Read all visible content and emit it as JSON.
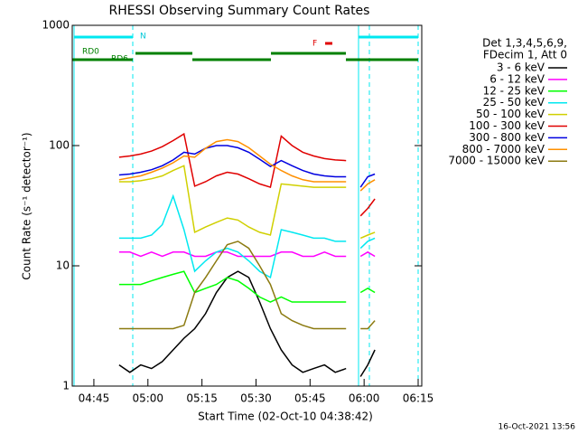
{
  "chart_data": {
    "type": "line",
    "title": "RHESSI Observing Summary Count Rates",
    "x_label": "Start Time (02-Oct-10 04:38:42)",
    "y_label": "Count Rate (s⁻¹ detector⁻¹)",
    "timestamp": "16-Oct-2021 13:56",
    "legend_title": [
      "Det 1,3,4,5,6,9,",
      "FDecim 1, Att 0"
    ],
    "annotations": [
      "N",
      "F",
      "RD0",
      "RD6"
    ],
    "log_y": true,
    "xlim": [
      39,
      136
    ],
    "xticks": [
      {
        "value": 45,
        "label": "04:45"
      },
      {
        "value": 60,
        "label": "05:00"
      },
      {
        "value": 75,
        "label": "05:15"
      },
      {
        "value": 90,
        "label": "05:30"
      },
      {
        "value": 105,
        "label": "05:45"
      },
      {
        "value": 120,
        "label": "06:00"
      },
      {
        "value": 135,
        "label": "06:15"
      }
    ],
    "ylim": [
      1,
      1000
    ],
    "yticks": [
      1,
      10,
      100,
      1000
    ],
    "x": [
      52,
      55,
      58,
      61,
      64,
      67,
      70,
      73,
      76,
      79,
      82,
      85,
      88,
      91,
      94,
      97,
      100,
      103,
      106,
      109,
      112,
      115,
      117,
      119,
      121,
      123
    ],
    "series": [
      {
        "name": "3 - 6 keV",
        "color": "#000000",
        "values": [
          1.5,
          1.3,
          1.5,
          1.4,
          1.6,
          2,
          2.5,
          3,
          4,
          6,
          8,
          9,
          8,
          5,
          3,
          2,
          1.5,
          1.3,
          1.4,
          1.5,
          1.3,
          1.4,
          null,
          1.2,
          1.5,
          2
        ]
      },
      {
        "name": "6 - 12 keV",
        "color": "#ff00ff",
        "values": [
          13,
          13,
          12,
          13,
          12,
          13,
          13,
          12,
          12,
          13,
          13,
          12,
          12,
          12,
          12,
          13,
          13,
          12,
          12,
          13,
          12,
          12,
          null,
          12,
          13,
          12
        ]
      },
      {
        "name": "12 - 25 keV",
        "color": "#00ff00",
        "values": [
          7,
          7,
          7,
          7.5,
          8,
          8.5,
          9,
          6,
          6.5,
          7,
          8,
          7.5,
          6.5,
          5.5,
          5,
          5.5,
          5,
          5,
          5,
          5,
          5,
          5,
          null,
          6,
          6.5,
          6
        ]
      },
      {
        "name": "25 - 50 keV",
        "color": "#00e8f0",
        "values": [
          17,
          17,
          17,
          18,
          22,
          38,
          20,
          9,
          11,
          13,
          14,
          13,
          11,
          9,
          8,
          20,
          19,
          18,
          17,
          17,
          16,
          16,
          null,
          14,
          16,
          17
        ]
      },
      {
        "name": "50 - 100 keV",
        "color": "#d0d000",
        "values": [
          50,
          50,
          51,
          53,
          56,
          62,
          68,
          19,
          21,
          23,
          25,
          24,
          21,
          19,
          18,
          48,
          47,
          46,
          45,
          45,
          45,
          45,
          null,
          17,
          18,
          19
        ]
      },
      {
        "name": "100 - 300 keV",
        "color": "#e00000",
        "values": [
          80,
          82,
          85,
          90,
          98,
          110,
          125,
          46,
          50,
          56,
          60,
          58,
          53,
          48,
          45,
          120,
          100,
          88,
          82,
          78,
          76,
          75,
          null,
          26,
          30,
          36
        ]
      },
      {
        "name": "300 - 800 keV",
        "color": "#0000e0",
        "values": [
          57,
          58,
          60,
          63,
          68,
          76,
          88,
          85,
          95,
          100,
          100,
          96,
          88,
          77,
          67,
          75,
          68,
          62,
          58,
          56,
          55,
          55,
          null,
          45,
          55,
          58
        ]
      },
      {
        "name": "800 - 7000 keV",
        "color": "#ff9000",
        "values": [
          52,
          54,
          56,
          60,
          65,
          72,
          82,
          80,
          95,
          108,
          112,
          108,
          96,
          82,
          70,
          62,
          56,
          52,
          50,
          50,
          50,
          50,
          null,
          42,
          48,
          52
        ]
      },
      {
        "name": "7000 - 15000 keV",
        "color": "#8b7a10",
        "values": [
          3,
          3,
          3,
          3,
          3,
          3,
          3.2,
          6,
          8,
          11,
          15,
          16,
          14,
          10,
          7,
          4,
          3.5,
          3.2,
          3,
          3,
          3,
          3,
          null,
          3,
          3,
          3.5
        ]
      }
    ]
  }
}
